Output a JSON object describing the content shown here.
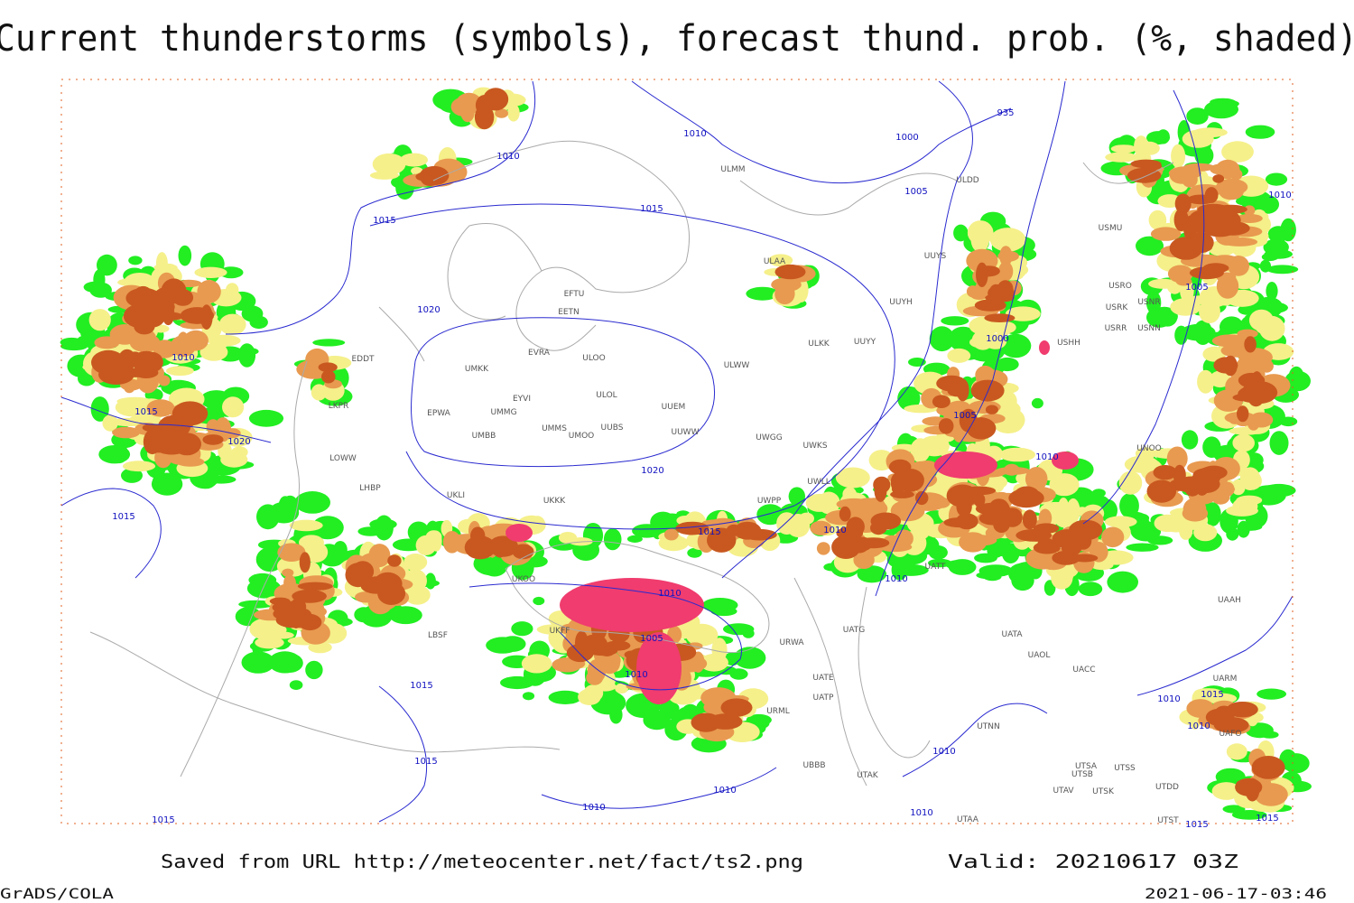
{
  "title": "Current thunderstorms (symbols), forecast thund. prob. (%, shaded)",
  "footer": {
    "source": "Saved from URL http://meteocenter.net/fact/ts2.png",
    "valid": "Valid: 20210617 03Z",
    "software": "GrADS/COLA",
    "timestamp": "2021-06-17-03:46"
  },
  "isobar_labels": [
    "1010",
    "1010",
    "935",
    "1000",
    "1005",
    "1015",
    "1015",
    "1020",
    "1010",
    "1015",
    "1020",
    "1015",
    "1005",
    "1010",
    "1000",
    "1005",
    "1010",
    "1020",
    "1015",
    "1010",
    "1010",
    "1010",
    "1005",
    "1010",
    "1015",
    "1015",
    "1010",
    "1010",
    "1015",
    "1010",
    "1010",
    "1010",
    "1015",
    "1010",
    "1015",
    "1015"
  ],
  "station_labels": [
    "ULMM",
    "ULAA",
    "UUYS",
    "UUYH",
    "ULKK",
    "UUYY",
    "ULWW",
    "EFTU",
    "EETN",
    "EVRA",
    "ULOO",
    "UMKK",
    "EYVI",
    "ULOL",
    "UUEM",
    "EPWA",
    "UMMG",
    "UMMS",
    "UUBS",
    "UMOO",
    "UUWW",
    "UWGG",
    "UMBB",
    "UWKS",
    "UKLI",
    "UKKK",
    "UWPP",
    "UWLL",
    "ULDD",
    "USMU",
    "USRO",
    "USRK",
    "USNR",
    "USRR",
    "USNN",
    "USHH",
    "UNOO",
    "UATT",
    "UATA",
    "UAOL",
    "UACC",
    "UTNN",
    "UAAH",
    "UTSA",
    "UTSB",
    "UTSS",
    "UTAV",
    "UTSK",
    "UTAA",
    "UTDD",
    "UTST",
    "UAFO",
    "UARM",
    "UATG",
    "UATE",
    "UATP",
    "URWA",
    "EDDT",
    "LKPR",
    "LOWW",
    "LHBP",
    "LBSF",
    "UKOO",
    "UKFF",
    "URML",
    "UBBB",
    "UTAK"
  ]
}
